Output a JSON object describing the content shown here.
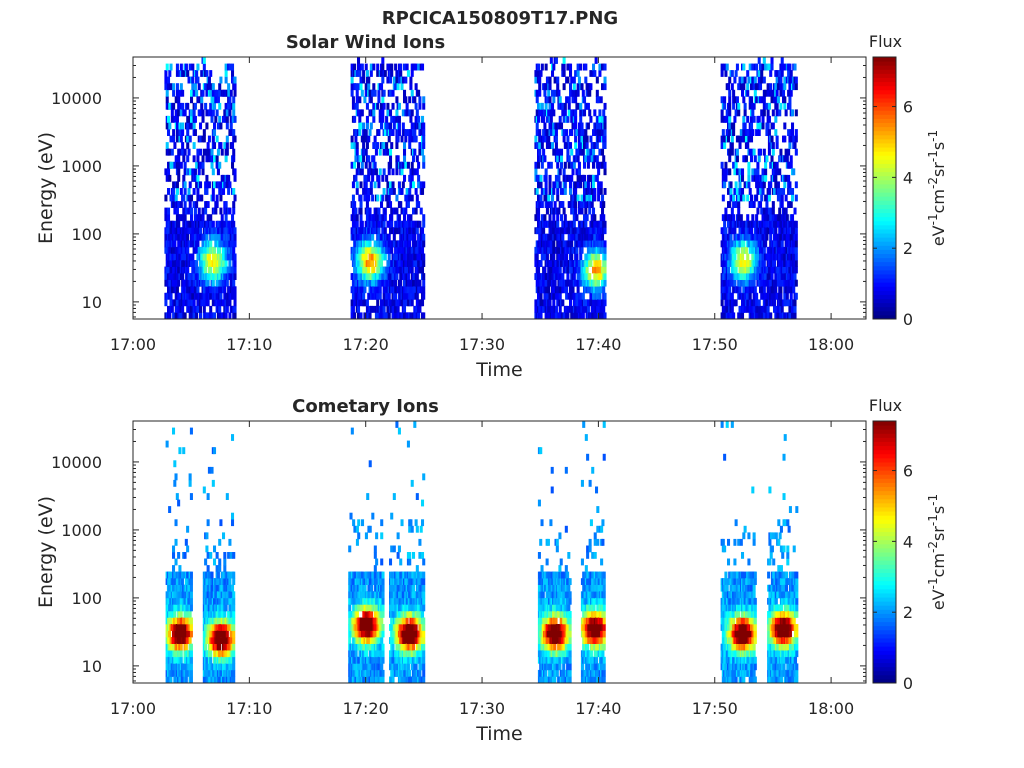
{
  "figure": {
    "title": "RPCICA150809T17.PNG"
  },
  "chart_data": [
    {
      "type": "heatmap",
      "title": "Solar Wind Ions",
      "xlabel": "Time",
      "ylabel": "Energy (eV)",
      "x_ticks": [
        "17:00",
        "17:10",
        "17:20",
        "17:30",
        "17:40",
        "17:50",
        "18:00"
      ],
      "x_range_minutes": [
        0,
        63
      ],
      "y_ticks": [
        "10",
        "100",
        "1000",
        "10000"
      ],
      "y_scale": "log",
      "y_range": [
        5.6,
        40000
      ],
      "colorbar": {
        "title": "Flux",
        "label": "eV^-1cm^-2sr^-1s^-1",
        "ticks": [
          "0",
          "2",
          "4",
          "6"
        ],
        "range": [
          0,
          7.4
        ],
        "colormap": "jet"
      },
      "bursts": [
        {
          "t_start": 2.7,
          "t_end": 8.7,
          "peak_time": 6.8,
          "peak_energy": 40,
          "peak_flux": 4.2
        },
        {
          "t_start": 18.7,
          "t_end": 25.0,
          "peak_time": 20.3,
          "peak_energy": 40,
          "peak_flux": 4.8
        },
        {
          "t_start": 34.5,
          "t_end": 40.5,
          "peak_time": 39.7,
          "peak_energy": 30,
          "peak_flux": 4.5
        },
        {
          "t_start": 50.5,
          "t_end": 57.0,
          "peak_time": 52.4,
          "peak_energy": 40,
          "peak_flux": 4.0
        }
      ]
    },
    {
      "type": "heatmap",
      "title": "Cometary Ions",
      "xlabel": "Time",
      "ylabel": "Energy (eV)",
      "x_ticks": [
        "17:00",
        "17:10",
        "17:20",
        "17:30",
        "17:40",
        "17:50",
        "18:00"
      ],
      "x_range_minutes": [
        0,
        63
      ],
      "y_ticks": [
        "10",
        "100",
        "1000",
        "10000"
      ],
      "y_scale": "log",
      "y_range": [
        5.6,
        40000
      ],
      "colorbar": {
        "title": "Flux",
        "label": "eV^-1cm^-2sr^-1s^-1",
        "ticks": [
          "0",
          "2",
          "4",
          "6"
        ],
        "range": [
          0,
          7.4
        ],
        "colormap": "jet"
      },
      "bursts": [
        {
          "t_start": 2.8,
          "t_end": 5.0,
          "peak_time": 4.0,
          "peak_energy": 30,
          "peak_flux": 6.8
        },
        {
          "t_start": 6.0,
          "t_end": 8.6,
          "peak_time": 7.5,
          "peak_energy": 25,
          "peak_flux": 7.0
        },
        {
          "t_start": 18.5,
          "t_end": 21.5,
          "peak_time": 20.0,
          "peak_energy": 40,
          "peak_flux": 7.0
        },
        {
          "t_start": 22.0,
          "t_end": 25.0,
          "peak_time": 23.7,
          "peak_energy": 30,
          "peak_flux": 7.2
        },
        {
          "t_start": 34.8,
          "t_end": 37.5,
          "peak_time": 36.2,
          "peak_energy": 30,
          "peak_flux": 7.0
        },
        {
          "t_start": 38.5,
          "t_end": 40.5,
          "peak_time": 39.6,
          "peak_energy": 35,
          "peak_flux": 6.8
        },
        {
          "t_start": 50.5,
          "t_end": 53.5,
          "peak_time": 52.3,
          "peak_energy": 30,
          "peak_flux": 7.0
        },
        {
          "t_start": 54.5,
          "t_end": 57.0,
          "peak_time": 55.8,
          "peak_energy": 35,
          "peak_flux": 7.0
        }
      ]
    }
  ]
}
